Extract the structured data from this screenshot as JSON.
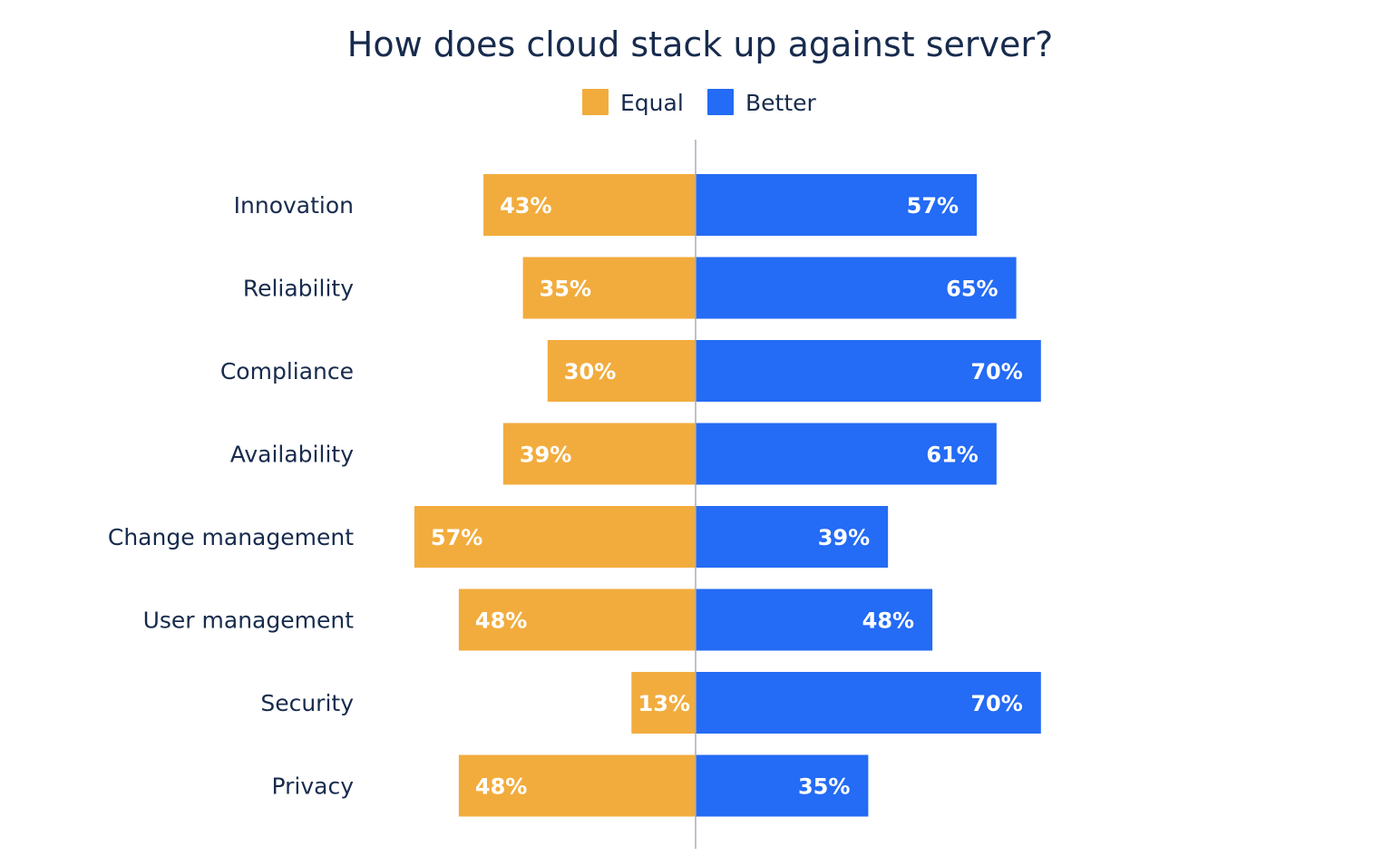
{
  "chart_data": {
    "type": "bar",
    "orientation": "horizontal-diverging",
    "title": "How does cloud stack up against server?",
    "xlabel": "",
    "ylabel": "",
    "legend_position": "top-center",
    "grid": false,
    "xlim": [
      -60,
      75
    ],
    "categories": [
      "Innovation",
      "Reliability",
      "Compliance",
      "Availability",
      "Change management",
      "User management",
      "Security",
      "Privacy"
    ],
    "series": [
      {
        "name": "Equal",
        "color": "#F2AC3D",
        "direction": "left",
        "values": [
          43,
          35,
          30,
          39,
          57,
          48,
          13,
          48
        ],
        "labels": [
          "43%",
          "35%",
          "30%",
          "39%",
          "57%",
          "48%",
          "13%",
          "48%"
        ]
      },
      {
        "name": "Better",
        "color": "#246BF5",
        "direction": "right",
        "values": [
          57,
          65,
          70,
          61,
          39,
          48,
          70,
          35
        ],
        "labels": [
          "57%",
          "65%",
          "70%",
          "61%",
          "39%",
          "48%",
          "70%",
          "35%"
        ]
      }
    ]
  },
  "colors": {
    "text": "#172B4D",
    "divider": "#A5ADBA",
    "value_text": "#FFFFFF"
  }
}
